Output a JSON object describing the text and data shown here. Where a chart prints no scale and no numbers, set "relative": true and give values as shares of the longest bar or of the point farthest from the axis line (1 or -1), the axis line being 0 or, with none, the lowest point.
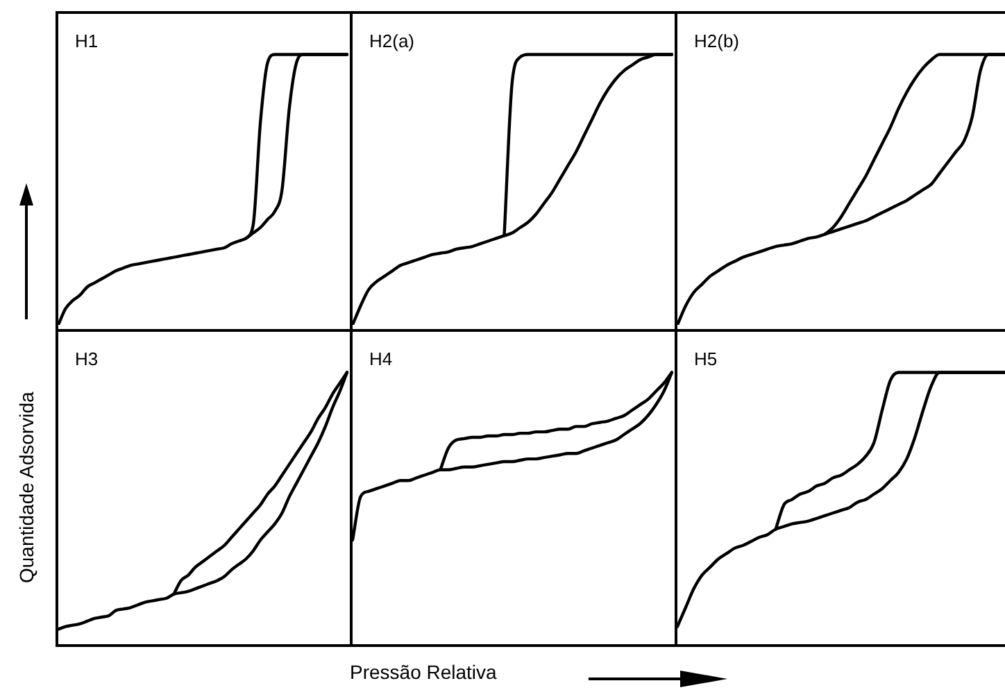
{
  "chart_data": [
    {
      "type": "line",
      "title": "H1",
      "ylabel": "Quantidade Adsorvida",
      "relative": true,
      "tick_labels": false,
      "marker": "none",
      "categories": [
        null,
        null,
        null,
        null,
        null,
        null,
        null,
        null,
        null,
        null,
        null,
        null,
        null,
        null,
        null,
        null,
        null,
        null,
        null,
        null,
        null,
        null,
        null,
        null,
        null,
        null,
        null,
        null,
        null,
        null,
        null,
        null,
        null,
        null,
        null,
        null,
        null,
        null,
        null,
        null,
        null
      ],
      "series": [
        {
          "color": "#000000",
          "values": [
            0,
            0.06,
            0.09,
            0.11,
            0.14,
            0.155,
            0.17,
            0.185,
            0.2,
            0.21,
            0.22,
            0.225,
            0.23,
            0.235,
            0.24,
            0.245,
            0.25,
            0.255,
            0.26,
            0.265,
            0.27,
            0.275,
            0.28,
            0.285,
            0.3,
            0.31,
            0.32,
            0.34,
            0.36,
            0.39,
            0.42,
            0.5,
            0.8,
            0.97,
            1,
            1,
            1,
            1,
            1,
            1,
            1
          ]
        },
        {
          "color": "#000000",
          "values": [
            null,
            null,
            null,
            null,
            null,
            null,
            null,
            null,
            null,
            null,
            null,
            null,
            null,
            null,
            null,
            null,
            null,
            null,
            null,
            null,
            null,
            null,
            null,
            null,
            null,
            null,
            0.32,
            0.37,
            0.75,
            0.97,
            1,
            1,
            1,
            1,
            1,
            1,
            1,
            1,
            1,
            1,
            1
          ]
        }
      ]
    },
    {
      "type": "line",
      "title": "H2(a)",
      "relative": true,
      "tick_labels": false,
      "marker": "none",
      "categories": [
        null,
        null,
        null,
        null,
        null,
        null,
        null,
        null,
        null,
        null,
        null,
        null,
        null,
        null,
        null,
        null,
        null,
        null,
        null,
        null,
        null,
        null,
        null,
        null,
        null,
        null,
        null,
        null,
        null,
        null,
        null,
        null,
        null,
        null,
        null,
        null,
        null,
        null,
        null,
        null,
        null
      ],
      "series": [
        {
          "color": "#000000",
          "values": [
            0,
            0.07,
            0.13,
            0.16,
            0.18,
            0.2,
            0.22,
            0.23,
            0.24,
            0.25,
            0.26,
            0.265,
            0.27,
            0.28,
            0.285,
            0.29,
            0.3,
            0.31,
            0.32,
            0.33,
            0.34,
            0.36,
            0.38,
            0.41,
            0.45,
            0.49,
            0.54,
            0.59,
            0.64,
            0.7,
            0.76,
            0.82,
            0.87,
            0.91,
            0.94,
            0.96,
            0.98,
            0.99,
            1,
            1,
            1
          ]
        },
        {
          "color": "#000000",
          "values": [
            null,
            null,
            null,
            null,
            null,
            null,
            null,
            null,
            null,
            null,
            null,
            null,
            null,
            null,
            null,
            null,
            null,
            null,
            null,
            0.33,
            0.9,
            0.99,
            1,
            1,
            1,
            1,
            1,
            1,
            1,
            1,
            1,
            1,
            1,
            1,
            1,
            1,
            1,
            1,
            1,
            1,
            1
          ]
        }
      ]
    },
    {
      "type": "line",
      "title": "H2(b)",
      "relative": true,
      "tick_labels": false,
      "marker": "none",
      "categories": [
        null,
        null,
        null,
        null,
        null,
        null,
        null,
        null,
        null,
        null,
        null,
        null,
        null,
        null,
        null,
        null,
        null,
        null,
        null,
        null,
        null,
        null,
        null,
        null,
        null,
        null,
        null,
        null,
        null,
        null,
        null,
        null,
        null,
        null,
        null,
        null,
        null,
        null,
        null,
        null,
        null
      ],
      "series": [
        {
          "color": "#000000",
          "values": [
            0,
            0.07,
            0.12,
            0.15,
            0.18,
            0.2,
            0.22,
            0.235,
            0.25,
            0.26,
            0.27,
            0.28,
            0.29,
            0.295,
            0.3,
            0.31,
            0.32,
            0.325,
            0.335,
            0.345,
            0.355,
            0.365,
            0.375,
            0.385,
            0.4,
            0.415,
            0.43,
            0.445,
            0.46,
            0.48,
            0.5,
            0.52,
            0.56,
            0.6,
            0.64,
            0.68,
            0.77,
            0.94,
            1,
            1,
            1
          ]
        },
        {
          "color": "#000000",
          "values": [
            null,
            null,
            null,
            null,
            null,
            null,
            null,
            null,
            null,
            null,
            null,
            null,
            null,
            null,
            null,
            null,
            null,
            null,
            0.335,
            0.36,
            0.4,
            0.45,
            0.5,
            0.55,
            0.61,
            0.67,
            0.73,
            0.8,
            0.86,
            0.91,
            0.95,
            0.98,
            1,
            1,
            1,
            1,
            1,
            1,
            1,
            1,
            1
          ]
        }
      ]
    },
    {
      "type": "line",
      "title": "H3",
      "relative": true,
      "tick_labels": false,
      "marker": "none",
      "categories": [
        null,
        null,
        null,
        null,
        null,
        null,
        null,
        null,
        null,
        null,
        null,
        null,
        null,
        null,
        null,
        null,
        null,
        null,
        null,
        null,
        null,
        null,
        null,
        null,
        null,
        null,
        null,
        null,
        null,
        null,
        null,
        null,
        null,
        null,
        null,
        null,
        null,
        null,
        null,
        null,
        null
      ],
      "series": [
        {
          "color": "#000000",
          "values": [
            0.05,
            0.06,
            0.065,
            0.07,
            0.08,
            0.09,
            0.095,
            0.1,
            0.12,
            0.125,
            0.13,
            0.14,
            0.15,
            0.155,
            0.16,
            0.165,
            0.18,
            0.185,
            0.19,
            0.2,
            0.21,
            0.22,
            0.23,
            0.245,
            0.27,
            0.29,
            0.31,
            0.34,
            0.38,
            0.41,
            0.44,
            0.48,
            0.54,
            0.59,
            0.64,
            0.69,
            0.74,
            0.8,
            0.87,
            0.93,
            1
          ]
        },
        {
          "color": "#000000",
          "values": [
            null,
            null,
            null,
            null,
            null,
            null,
            null,
            null,
            null,
            null,
            null,
            null,
            null,
            null,
            null,
            null,
            0.18,
            0.23,
            0.25,
            0.28,
            0.3,
            0.32,
            0.34,
            0.36,
            0.39,
            0.42,
            0.45,
            0.48,
            0.51,
            0.55,
            0.58,
            0.62,
            0.66,
            0.7,
            0.74,
            0.78,
            0.83,
            0.87,
            0.92,
            0.96,
            1
          ]
        }
      ]
    },
    {
      "type": "line",
      "title": "H4",
      "xlabel": "Pressão Relativa",
      "relative": true,
      "tick_labels": false,
      "marker": "none",
      "categories": [
        null,
        null,
        null,
        null,
        null,
        null,
        null,
        null,
        null,
        null,
        null,
        null,
        null,
        null,
        null,
        null,
        null,
        null,
        null,
        null,
        null,
        null,
        null,
        null,
        null,
        null,
        null,
        null,
        null,
        null,
        null,
        null,
        null,
        null,
        null,
        null,
        null,
        null,
        null,
        null,
        null
      ],
      "series": [
        {
          "color": "#000000",
          "values": [
            0.38,
            0.54,
            0.56,
            0.57,
            0.58,
            0.59,
            0.6,
            0.6,
            0.61,
            0.62,
            0.63,
            0.64,
            0.64,
            0.645,
            0.65,
            0.65,
            0.655,
            0.66,
            0.665,
            0.67,
            0.67,
            0.675,
            0.68,
            0.68,
            0.685,
            0.69,
            0.695,
            0.7,
            0.7,
            0.71,
            0.72,
            0.73,
            0.74,
            0.75,
            0.77,
            0.79,
            0.81,
            0.84,
            0.88,
            0.93,
            1
          ]
        },
        {
          "color": "#000000",
          "values": [
            null,
            null,
            null,
            null,
            null,
            null,
            null,
            null,
            null,
            null,
            null,
            0.64,
            0.72,
            0.75,
            0.755,
            0.76,
            0.76,
            0.765,
            0.765,
            0.77,
            0.77,
            0.775,
            0.775,
            0.78,
            0.78,
            0.785,
            0.79,
            0.79,
            0.8,
            0.8,
            0.81,
            0.815,
            0.82,
            0.83,
            0.84,
            0.86,
            0.88,
            0.9,
            0.93,
            0.96,
            1
          ]
        }
      ]
    },
    {
      "type": "line",
      "title": "H5",
      "relative": true,
      "tick_labels": false,
      "marker": "none",
      "categories": [
        null,
        null,
        null,
        null,
        null,
        null,
        null,
        null,
        null,
        null,
        null,
        null,
        null,
        null,
        null,
        null,
        null,
        null,
        null,
        null,
        null,
        null,
        null,
        null,
        null,
        null,
        null,
        null,
        null,
        null,
        null,
        null,
        null,
        null,
        null,
        null,
        null,
        null,
        null,
        null,
        null
      ],
      "series": [
        {
          "color": "#000000",
          "values": [
            0.06,
            0.13,
            0.2,
            0.25,
            0.28,
            0.31,
            0.33,
            0.35,
            0.36,
            0.375,
            0.39,
            0.4,
            0.42,
            0.43,
            0.44,
            0.445,
            0.45,
            0.46,
            0.47,
            0.48,
            0.49,
            0.5,
            0.52,
            0.53,
            0.55,
            0.57,
            0.6,
            0.63,
            0.68,
            0.76,
            0.86,
            0.95,
            1,
            1,
            1,
            1,
            1,
            1,
            1,
            1,
            1
          ]
        },
        {
          "color": "#000000",
          "values": [
            null,
            null,
            null,
            null,
            null,
            null,
            null,
            null,
            null,
            null,
            null,
            null,
            0.42,
            0.51,
            0.53,
            0.55,
            0.56,
            0.58,
            0.59,
            0.61,
            0.62,
            0.64,
            0.66,
            0.69,
            0.74,
            0.86,
            0.97,
            1,
            1,
            1,
            1,
            1,
            1,
            1,
            1,
            1,
            1,
            1,
            1,
            1,
            1
          ]
        }
      ]
    }
  ]
}
